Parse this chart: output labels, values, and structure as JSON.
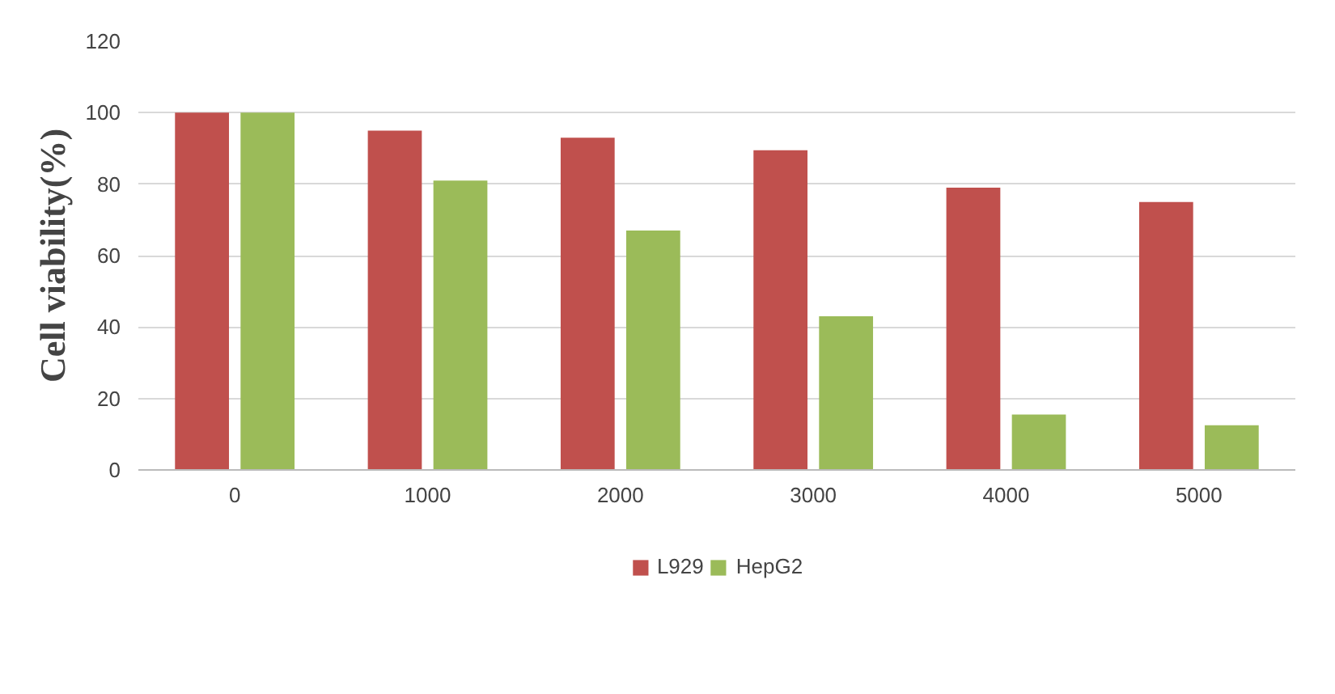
{
  "chart_data": {
    "type": "bar",
    "ylabel": "Cell viability(%)",
    "categories": [
      "0",
      "1000",
      "2000",
      "3000",
      "4000",
      "5000"
    ],
    "series": [
      {
        "name": "L929",
        "color": "#c0504d",
        "values": [
          100,
          95,
          93,
          89.5,
          79,
          75
        ]
      },
      {
        "name": "HepG2",
        "color": "#9bbb59",
        "values": [
          100,
          81,
          67,
          43,
          15.5,
          12.5
        ]
      }
    ],
    "ylim": [
      0,
      120
    ],
    "yticks": [
      0,
      20,
      40,
      60,
      80,
      100,
      120
    ],
    "grid": "y",
    "legend": "bottom"
  }
}
